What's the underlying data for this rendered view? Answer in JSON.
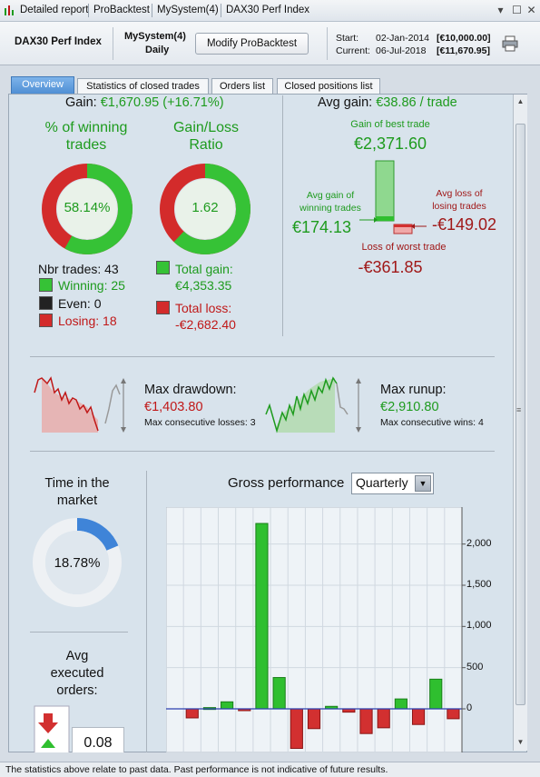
{
  "titlebar": {
    "items": [
      "Detailed report",
      "ProBacktest",
      "MySystem(4)",
      "DAX30 Perf Index"
    ]
  },
  "header": {
    "instrument": "DAX30 Perf Index",
    "system_name": "MySystem(4)",
    "timeframe": "Daily",
    "modify_button": "Modify ProBacktest",
    "start_label": "Start:",
    "start_date": "02-Jan-2014",
    "start_value": "[€10,000.00]",
    "current_label": "Current:",
    "current_date": "06-Jul-2018",
    "current_value": "[€11,670.95]"
  },
  "tabs": [
    "Overview",
    "Statistics of closed trades",
    "Orders list",
    "Closed positions list"
  ],
  "summary": {
    "gain_label": "Gain:",
    "gain_value": "€1,670.95 (+16.71%)",
    "avg_gain_label": "Avg gain:",
    "avg_gain_value": "€38.86 / trade"
  },
  "winning": {
    "title_line1": "% of winning",
    "title_line2": "trades",
    "pct": "58.14%",
    "pct_value": 58.14,
    "nbr_trades": "Nbr trades: 43",
    "winning": "Winning: 25",
    "even": "Even: 0",
    "losing": "Losing: 18"
  },
  "gainloss": {
    "title_line1": "Gain/Loss",
    "title_line2": "Ratio",
    "ratio": "1.62",
    "ratio_fraction": 0.62,
    "total_gain_label": "Total gain:",
    "total_gain": "€4,353.35",
    "total_loss_label": "Total loss:",
    "total_loss": "-€2,682.40"
  },
  "trades": {
    "best_label": "Gain of best trade",
    "best_value": "€2,371.60",
    "avg_gain_label_1": "Avg gain of",
    "avg_gain_label_2": "winning trades",
    "avg_gain_value": "€174.13",
    "avg_loss_label_1": "Avg loss of",
    "avg_loss_label_2": "losing trades",
    "avg_loss_value": "-€149.02",
    "worst_label": "Loss of worst trade",
    "worst_value": "-€361.85"
  },
  "drawdown": {
    "label": "Max drawdown:",
    "value": "€1,403.80",
    "consecutive": "Max consecutive losses: 3"
  },
  "runup": {
    "label": "Max runup:",
    "value": "€2,910.80",
    "consecutive": "Max consecutive wins: 4"
  },
  "market": {
    "title_line1": "Time in the",
    "title_line2": "market",
    "pct": "18.78%",
    "pct_value": 18.78
  },
  "orders": {
    "title_line1": "Avg",
    "title_line2": "executed",
    "title_line3": "orders:",
    "value": "0.08"
  },
  "gross": {
    "title": "Gross performance",
    "period": "Quarterly",
    "colors": {
      "positive": "#2fbf2f",
      "negative": "#d23030"
    }
  },
  "chart_data": {
    "type": "bar",
    "title": "Gross performance",
    "ylim": [
      -500,
      2500
    ],
    "yticks": [
      0,
      500,
      1000,
      1500,
      2000
    ],
    "ytick_labels": [
      "0",
      "500",
      "1,000",
      "1,500",
      "2,000"
    ],
    "values": [
      0,
      -110,
      15,
      85,
      -10,
      2250,
      380,
      -480,
      -240,
      30,
      -40,
      -300,
      -230,
      120,
      -190,
      360,
      -120
    ],
    "grid": true
  },
  "footer": {
    "text": "The statistics above relate to past data. Past performance is not indicative of future results."
  }
}
